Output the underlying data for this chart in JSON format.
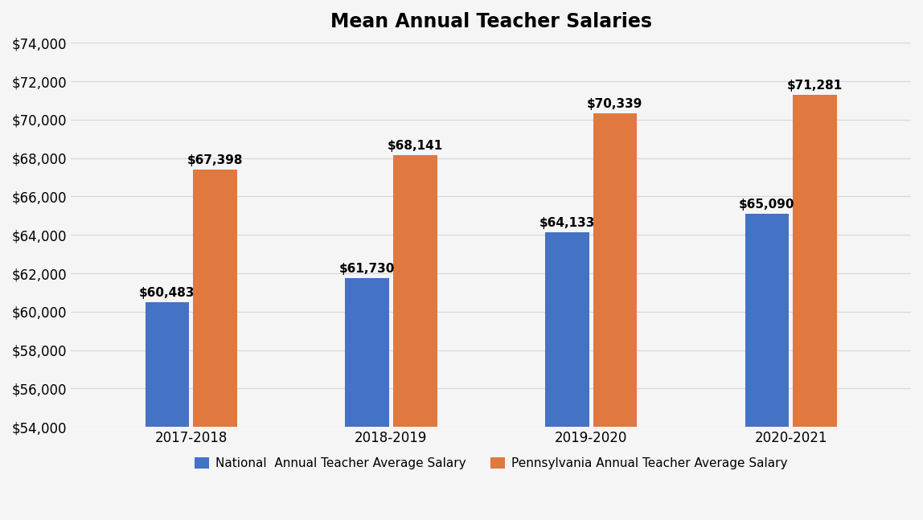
{
  "title": "Mean Annual Teacher Salaries",
  "categories": [
    "2017-2018",
    "2018-2019",
    "2019-2020",
    "2020-2021"
  ],
  "national_values": [
    60483,
    61730,
    64133,
    65090
  ],
  "pa_values": [
    67398,
    68141,
    70339,
    71281
  ],
  "national_label": "National  Annual Teacher Average Salary",
  "pa_label": "Pennsylvania Annual Teacher Average Salary",
  "national_color": "#4472C4",
  "pa_color": "#E07840",
  "ylim_min": 54000,
  "ylim_max": 74000,
  "ytick_step": 2000,
  "bar_width": 0.22,
  "title_fontsize": 17,
  "label_fontsize": 11,
  "tick_fontsize": 12,
  "annotation_fontsize": 11,
  "background_color": "#F5F5F5",
  "grid_color": "#D8D8D8"
}
